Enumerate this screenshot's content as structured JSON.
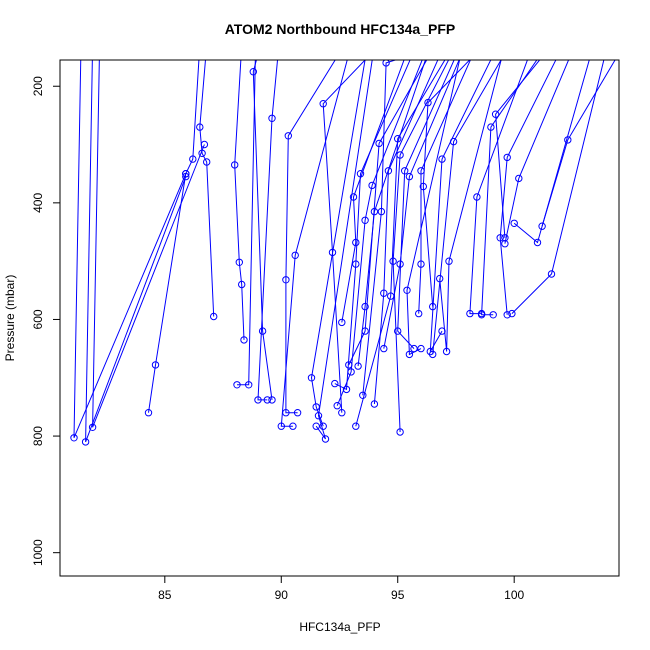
{
  "chart_data": {
    "type": "scatter",
    "title": "ATOM2 Northbound HFC134a_PFP",
    "xlabel": "HFC134a_PFP",
    "ylabel": "Pressure (mbar)",
    "xlim": [
      80.5,
      104.5
    ],
    "ylim": [
      1040,
      155
    ],
    "y_reversed": true,
    "x_ticks": [
      85,
      90,
      95,
      100
    ],
    "y_ticks": [
      200,
      400,
      600,
      800,
      1000
    ],
    "grid": false,
    "legend": "none",
    "series_color": "#0000ff",
    "marker": "open-circle",
    "profiles": [
      [
        [
          86.5,
          270
        ],
        [
          86.6,
          315
        ],
        [
          86.8,
          330
        ],
        [
          87.1,
          595
        ]
      ],
      [
        [
          86.2,
          325
        ],
        [
          85.9,
          350
        ],
        [
          84.6,
          678
        ],
        [
          84.3,
          760
        ]
      ],
      [
        [
          88.8,
          175
        ],
        [
          89.2,
          620
        ],
        [
          89.6,
          738
        ]
      ],
      [
        [
          88.0,
          335
        ],
        [
          88.2,
          502
        ],
        [
          88.3,
          540
        ],
        [
          88.4,
          635
        ]
      ],
      [
        [
          89.6,
          255
        ],
        [
          89.0,
          738
        ],
        [
          89.4,
          738
        ]
      ],
      [
        [
          90.3,
          285
        ],
        [
          90.2,
          532
        ],
        [
          90.2,
          760
        ],
        [
          90.7,
          760
        ]
      ],
      [
        [
          90.6,
          490
        ],
        [
          90.0,
          783
        ],
        [
          90.5,
          783
        ]
      ],
      [
        [
          91.8,
          230
        ],
        [
          92.2,
          485
        ],
        [
          92.6,
          760
        ]
      ],
      [
        [
          93.4,
          350
        ],
        [
          93.2,
          505
        ],
        [
          92.8,
          720
        ],
        [
          92.3,
          710
        ]
      ],
      [
        [
          93.9,
          370
        ],
        [
          93.6,
          430
        ],
        [
          93.0,
          690
        ],
        [
          92.4,
          748
        ]
      ],
      [
        [
          94.5,
          160
        ],
        [
          94.3,
          415
        ],
        [
          93.5,
          730
        ]
      ],
      [
        [
          95.0,
          290
        ],
        [
          94.7,
          560
        ],
        [
          93.2,
          783
        ]
      ],
      [
        [
          95.1,
          318
        ],
        [
          94.8,
          500
        ],
        [
          95.1,
          793
        ]
      ],
      [
        [
          95.3,
          345
        ],
        [
          95.0,
          620
        ],
        [
          95.7,
          650
        ]
      ],
      [
        [
          95.4,
          550
        ],
        [
          95.5,
          660
        ],
        [
          96.0,
          650
        ]
      ],
      [
        [
          96.0,
          345
        ],
        [
          96.0,
          505
        ],
        [
          95.9,
          590
        ]
      ],
      [
        [
          96.3,
          228
        ],
        [
          96.1,
          372
        ],
        [
          96.5,
          578
        ]
      ],
      [
        [
          96.9,
          325
        ],
        [
          96.4,
          655
        ],
        [
          96.9,
          620
        ]
      ],
      [
        [
          97.2,
          500
        ],
        [
          97.1,
          655
        ],
        [
          96.8,
          530
        ]
      ],
      [
        [
          97.4,
          295
        ],
        [
          96.5,
          660
        ]
      ],
      [
        [
          98.4,
          390
        ],
        [
          98.1,
          590
        ],
        [
          98.6,
          590
        ]
      ],
      [
        [
          99.0,
          270
        ],
        [
          98.6,
          592
        ],
        [
          99.1,
          592
        ]
      ],
      [
        [
          99.2,
          248
        ],
        [
          99.6,
          460
        ]
      ],
      [
        [
          99.7,
          322
        ],
        [
          99.4,
          460
        ],
        [
          99.7,
          592
        ]
      ],
      [
        [
          100.2,
          358
        ],
        [
          99.6,
          470
        ]
      ],
      [
        [
          101.0,
          468
        ],
        [
          100.0,
          435
        ]
      ],
      [
        [
          101.6,
          522
        ],
        [
          99.9,
          590
        ]
      ],
      [
        [
          102.3,
          292
        ],
        [
          101.2,
          440
        ]
      ],
      [
        [
          93.1,
          390
        ],
        [
          93.2,
          468
        ],
        [
          92.6,
          605
        ]
      ],
      [
        [
          94.0,
          415
        ],
        [
          93.6,
          578
        ],
        [
          93.3,
          680
        ]
      ],
      [
        [
          94.2,
          298
        ],
        [
          93.6,
          620
        ],
        [
          92.9,
          678
        ]
      ],
      [
        [
          95.5,
          355
        ],
        [
          95.1,
          505
        ],
        [
          94.4,
          650
        ]
      ],
      [
        [
          94.6,
          345
        ],
        [
          94.4,
          555
        ],
        [
          94.0,
          745
        ]
      ],
      [
        [
          91.3,
          700
        ],
        [
          91.5,
          750
        ],
        [
          91.8,
          783
        ]
      ],
      [
        [
          91.6,
          765
        ],
        [
          91.9,
          805
        ],
        [
          91.5,
          783
        ]
      ],
      [
        [
          81.1,
          803
        ],
        [
          85.9,
          350
        ]
      ],
      [
        [
          81.6,
          810
        ],
        [
          85.9,
          355
        ]
      ],
      [
        [
          81.9,
          785
        ],
        [
          86.7,
          300
        ]
      ],
      [
        [
          88.6,
          712
        ],
        [
          88.1,
          712
        ]
      ]
    ]
  }
}
